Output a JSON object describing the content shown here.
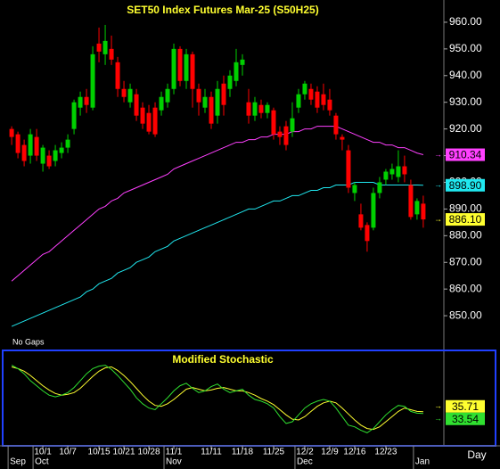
{
  "chart_data": [
    {
      "type": "candlestick",
      "title": "SET50 Index Futures Mar-25 (S50H25)",
      "note": "No Gaps",
      "up_color": "#00d000",
      "down_color": "#ff0000",
      "open": [
        920,
        918,
        914,
        910,
        917,
        907,
        910,
        908,
        911,
        913,
        920,
        928,
        932,
        928,
        952,
        948,
        950,
        945,
        935,
        930,
        933,
        928,
        926,
        928,
        927,
        930,
        935,
        950,
        938,
        948,
        935,
        928,
        932,
        925,
        937,
        935,
        938,
        944,
        930,
        925,
        929,
        926,
        927,
        919,
        921,
        919,
        928,
        933,
        935,
        934,
        933,
        931,
        925,
        917,
        912,
        896,
        888,
        884,
        883,
        896,
        901,
        903,
        902,
        906,
        899,
        888,
        892
      ],
      "high": [
        921,
        919,
        916,
        920,
        920,
        914,
        912,
        914,
        915,
        918,
        931,
        934,
        935,
        951,
        958,
        959,
        955,
        947,
        938,
        937,
        935,
        930,
        929,
        930,
        934,
        937,
        952,
        951,
        950,
        949,
        937,
        935,
        934,
        938,
        940,
        942,
        950,
        948,
        935,
        932,
        931,
        930,
        928,
        921,
        923,
        930,
        935,
        938,
        937,
        936,
        937,
        935,
        926,
        918,
        914,
        900,
        892,
        885,
        898,
        902,
        905,
        907,
        912,
        910,
        901,
        894,
        895
      ],
      "low": [
        914,
        909,
        906,
        907,
        908,
        904,
        905,
        906,
        909,
        911,
        918,
        925,
        926,
        927,
        945,
        944,
        944,
        932,
        930,
        928,
        923,
        920,
        918,
        917,
        925,
        928,
        933,
        936,
        935,
        928,
        925,
        926,
        920,
        922,
        925,
        932,
        936,
        940,
        922,
        923,
        924,
        924,
        916,
        914,
        912,
        917,
        926,
        931,
        929,
        926,
        927,
        925,
        916,
        912,
        896,
        893,
        882,
        874,
        882,
        894,
        899,
        901,
        900,
        900,
        886,
        886,
        883
      ],
      "close": [
        917,
        911,
        908,
        918,
        910,
        913,
        906,
        912,
        913,
        916,
        930,
        932,
        929,
        948,
        949,
        953,
        946,
        935,
        932,
        935,
        925,
        922,
        919,
        918,
        932,
        935,
        950,
        938,
        948,
        935,
        930,
        932,
        922,
        935,
        929,
        940,
        945,
        946,
        925,
        930,
        926,
        929,
        918,
        917,
        914,
        924,
        933,
        937,
        931,
        928,
        929,
        927,
        918,
        916,
        898,
        899,
        883,
        878,
        896,
        900,
        904,
        905,
        906,
        903,
        887,
        893,
        886.1
      ],
      "close_label": "886.10",
      "series": [
        {
          "color": "#ff40ff",
          "last_label": "910.34",
          "values": [
            863,
            865,
            867,
            869,
            871,
            873,
            874,
            876,
            878,
            880,
            882,
            884,
            886,
            888,
            890,
            891,
            893,
            894,
            896,
            897,
            898,
            899,
            900,
            901,
            902,
            903,
            905,
            906,
            907,
            908,
            909,
            910,
            911,
            912,
            913,
            914,
            915,
            915,
            916,
            916,
            917,
            917,
            918,
            918,
            918,
            919,
            919,
            920,
            920,
            921,
            921,
            921,
            921,
            920,
            919,
            918,
            917,
            916,
            915,
            915,
            914,
            914,
            913,
            913,
            912,
            911,
            910.34
          ]
        },
        {
          "color": "#20e8f0",
          "last_label": "898.90",
          "values": [
            846,
            847,
            848,
            849,
            850,
            851,
            852,
            853,
            854,
            855,
            856,
            857,
            859,
            860,
            862,
            863,
            864,
            866,
            867,
            868,
            870,
            871,
            872,
            874,
            875,
            876,
            878,
            879,
            880,
            881,
            882,
            883,
            884,
            885,
            886,
            887,
            888,
            889,
            890,
            890,
            891,
            892,
            893,
            893,
            894,
            895,
            895,
            896,
            897,
            897,
            898,
            898,
            899,
            899,
            899,
            900,
            900,
            900,
            900,
            899,
            899,
            899,
            899,
            899,
            899,
            899,
            898.9
          ]
        }
      ],
      "xlim": [
        -1.3,
        69.3
      ],
      "ylim": [
        838,
        967
      ],
      "yticks": [
        {
          "value": 960,
          "label": "960.00"
        },
        {
          "value": 950,
          "label": "950.00"
        },
        {
          "value": 940,
          "label": "940.00"
        },
        {
          "value": 930,
          "label": "930.00"
        },
        {
          "value": 920,
          "label": "920.00"
        },
        {
          "value": 910,
          "label": "910.00"
        },
        {
          "value": 900,
          "label": "900.00"
        },
        {
          "value": 890,
          "label": "890.00"
        },
        {
          "value": 880,
          "label": "880.00"
        },
        {
          "value": 870,
          "label": "870.00"
        },
        {
          "value": 860,
          "label": "860.00"
        },
        {
          "value": 850,
          "label": "850.00"
        }
      ]
    },
    {
      "type": "line",
      "title": "Modified Stochastic",
      "xlabel": "Day",
      "series": [
        {
          "color": "#ffff30",
          "last_label": "35.71",
          "values": [
            88,
            86,
            83,
            78,
            72,
            66,
            61,
            57,
            55,
            56,
            58,
            63,
            70,
            77,
            83,
            87,
            88,
            84,
            78,
            71,
            63,
            55,
            48,
            43,
            42,
            45,
            50,
            56,
            62,
            64,
            62,
            60,
            61,
            63,
            64,
            62,
            60,
            60,
            58,
            55,
            51,
            48,
            44,
            38,
            32,
            27,
            26,
            30,
            36,
            42,
            46,
            48,
            46,
            40,
            33,
            26,
            20,
            16,
            15,
            18,
            24,
            30,
            36,
            40,
            38,
            36,
            35.71
          ]
        },
        {
          "color": "#30e030",
          "last_label": "33.54",
          "values": [
            90,
            86,
            80,
            72,
            66,
            60,
            55,
            53,
            55,
            58,
            64,
            72,
            80,
            86,
            89,
            90,
            85,
            78,
            70,
            62,
            52,
            45,
            40,
            38,
            45,
            52,
            60,
            66,
            69,
            63,
            58,
            60,
            65,
            68,
            62,
            58,
            60,
            62,
            55,
            50,
            48,
            45,
            40,
            30,
            22,
            24,
            32,
            40,
            45,
            48,
            50,
            48,
            40,
            30,
            20,
            18,
            14,
            11,
            16,
            24,
            32,
            38,
            43,
            42,
            36,
            34,
            33.54
          ]
        }
      ],
      "xlim": [
        -1.3,
        69.3
      ],
      "ylim": [
        0,
        100
      ],
      "xticks": [
        {
          "value": 5,
          "label": "10/1"
        },
        {
          "value": 9,
          "label": "10/7"
        },
        {
          "value": 14,
          "label": "10/15"
        },
        {
          "value": 18,
          "label": "10/21"
        },
        {
          "value": 22,
          "label": "10/28"
        },
        {
          "value": 26,
          "label": "11/1"
        },
        {
          "value": 32,
          "label": "11/11"
        },
        {
          "value": 37,
          "label": "11/18"
        },
        {
          "value": 42,
          "label": "11/25"
        },
        {
          "value": 47,
          "label": "12/2"
        },
        {
          "value": 51,
          "label": "12/9"
        },
        {
          "value": 55,
          "label": "12/16"
        },
        {
          "value": 60,
          "label": "12/23"
        }
      ],
      "month_ticks": [
        {
          "value": 0,
          "label": "Sep"
        },
        {
          "value": 4,
          "label": "Oct"
        },
        {
          "value": 25,
          "label": "Nov"
        },
        {
          "value": 46,
          "label": "Dec"
        },
        {
          "value": 65,
          "label": "Jan"
        }
      ]
    }
  ]
}
